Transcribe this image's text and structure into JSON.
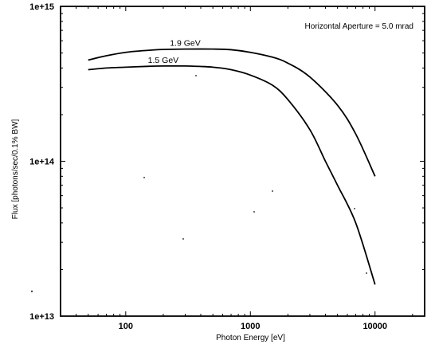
{
  "chart_data": {
    "type": "line",
    "title": "",
    "xlabel": "Photon Energy  [eV]",
    "ylabel": "Flux  [photons/sec/0.1% BW]",
    "xscale": "log",
    "yscale": "log",
    "xlim": [
      30,
      25000
    ],
    "ylim": [
      10000000000000,
      1000000000000000
    ],
    "x_ticks": [
      {
        "value": 100,
        "label": "100"
      },
      {
        "value": 1000,
        "label": "1000"
      },
      {
        "value": 10000,
        "label": "10000"
      }
    ],
    "y_ticks": [
      {
        "value": 10000000000000,
        "label": "1e+13"
      },
      {
        "value": 100000000000000,
        "label": "1e+14"
      },
      {
        "value": 1000000000000000,
        "label": "1e+15"
      }
    ],
    "annotation": "Horizontal Aperture = 5.0 mrad",
    "grid": false,
    "series": [
      {
        "name": "1.9 GeV",
        "x": [
          50,
          70,
          100,
          150,
          200,
          300,
          500,
          700,
          1000,
          1500,
          2000,
          3000,
          5000,
          7000,
          10000
        ],
        "y": [
          450000000000000,
          480000000000000,
          505000000000000,
          520000000000000,
          527000000000000,
          530000000000000,
          530000000000000,
          525000000000000,
          505000000000000,
          470000000000000,
          430000000000000,
          350000000000000,
          230000000000000,
          150000000000000,
          80000000000000
        ]
      },
      {
        "name": "1.5 GeV",
        "x": [
          50,
          70,
          100,
          150,
          200,
          300,
          500,
          700,
          1000,
          1500,
          2000,
          3000,
          4000,
          5000,
          7000,
          10000
        ],
        "y": [
          390000000000000,
          400000000000000,
          405000000000000,
          410000000000000,
          412000000000000,
          412000000000000,
          405000000000000,
          390000000000000,
          360000000000000,
          310000000000000,
          250000000000000,
          160000000000000,
          100000000000000,
          70000000000000,
          40000000000000,
          16000000000000
        ]
      }
    ]
  }
}
